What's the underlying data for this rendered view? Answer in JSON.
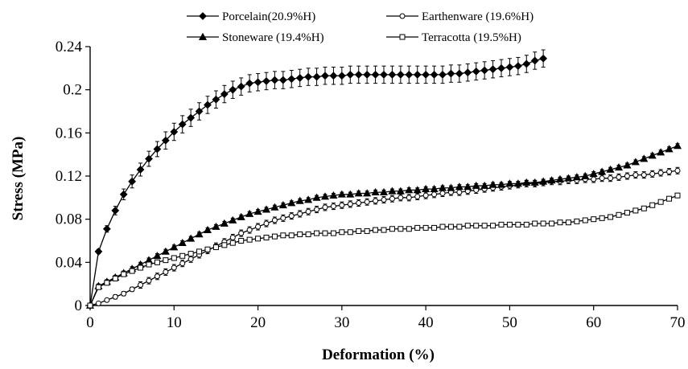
{
  "chart_data": {
    "type": "line",
    "xlabel": "Deformation (%)",
    "ylabel": "Stress (MPa)",
    "xlim": [
      0,
      70
    ],
    "ylim": [
      0,
      0.24
    ],
    "xticks": [
      "0",
      "10",
      "20",
      "30",
      "40",
      "50",
      "60",
      "70"
    ],
    "yticks": [
      "0",
      "0.04",
      "0.08",
      "0.12",
      "0.16",
      "0.2",
      "0.24"
    ],
    "grid": false,
    "legend_position": "top",
    "series": [
      {
        "name": "Porcelain(20.9%H)",
        "marker": "diamond-filled",
        "error_bars": true,
        "x": [
          0,
          1,
          2,
          3,
          4,
          5,
          6,
          7,
          8,
          9,
          10,
          11,
          12,
          13,
          14,
          15,
          16,
          17,
          18,
          19,
          20,
          21,
          22,
          23,
          24,
          25,
          26,
          27,
          28,
          29,
          30,
          31,
          32,
          33,
          34,
          35,
          36,
          37,
          38,
          39,
          40,
          41,
          42,
          43,
          44,
          45,
          46,
          47,
          48,
          49,
          50,
          51,
          52,
          53,
          54
        ],
        "y": [
          0,
          0.05,
          0.071,
          0.088,
          0.103,
          0.115,
          0.126,
          0.136,
          0.145,
          0.153,
          0.161,
          0.168,
          0.174,
          0.18,
          0.186,
          0.191,
          0.196,
          0.2,
          0.203,
          0.206,
          0.207,
          0.208,
          0.209,
          0.209,
          0.21,
          0.211,
          0.212,
          0.212,
          0.213,
          0.213,
          0.213,
          0.214,
          0.214,
          0.214,
          0.214,
          0.214,
          0.214,
          0.214,
          0.214,
          0.214,
          0.214,
          0.214,
          0.214,
          0.215,
          0.215,
          0.216,
          0.217,
          0.218,
          0.219,
          0.22,
          0.221,
          0.222,
          0.224,
          0.227,
          0.229
        ],
        "err": [
          0,
          0.002,
          0.003,
          0.004,
          0.005,
          0.006,
          0.006,
          0.007,
          0.007,
          0.008,
          0.008,
          0.008,
          0.008,
          0.008,
          0.008,
          0.008,
          0.008,
          0.008,
          0.008,
          0.008,
          0.008,
          0.008,
          0.008,
          0.008,
          0.008,
          0.008,
          0.008,
          0.008,
          0.008,
          0.008,
          0.008,
          0.008,
          0.008,
          0.008,
          0.008,
          0.008,
          0.008,
          0.008,
          0.008,
          0.008,
          0.008,
          0.008,
          0.008,
          0.008,
          0.008,
          0.008,
          0.008,
          0.008,
          0.008,
          0.008,
          0.008,
          0.008,
          0.008,
          0.008,
          0.008
        ]
      },
      {
        "name": "Earthenware (19.6%H)",
        "marker": "circle-open",
        "error_bars": true,
        "x": [
          0,
          1,
          2,
          3,
          4,
          5,
          6,
          7,
          8,
          9,
          10,
          11,
          12,
          13,
          14,
          15,
          16,
          17,
          18,
          19,
          20,
          21,
          22,
          23,
          24,
          25,
          26,
          27,
          28,
          29,
          30,
          31,
          32,
          33,
          34,
          35,
          36,
          37,
          38,
          39,
          40,
          41,
          42,
          43,
          44,
          45,
          46,
          47,
          48,
          49,
          50,
          51,
          52,
          53,
          54,
          55,
          56,
          57,
          58,
          59,
          60,
          61,
          62,
          63,
          64,
          65,
          66,
          67,
          68,
          69,
          70
        ],
        "y": [
          0,
          0.002,
          0.005,
          0.008,
          0.011,
          0.015,
          0.019,
          0.023,
          0.027,
          0.031,
          0.035,
          0.039,
          0.043,
          0.047,
          0.051,
          0.055,
          0.059,
          0.063,
          0.067,
          0.07,
          0.073,
          0.076,
          0.079,
          0.081,
          0.083,
          0.085,
          0.087,
          0.089,
          0.091,
          0.092,
          0.093,
          0.094,
          0.095,
          0.096,
          0.097,
          0.098,
          0.099,
          0.1,
          0.1,
          0.101,
          0.102,
          0.103,
          0.104,
          0.105,
          0.105,
          0.106,
          0.107,
          0.108,
          0.109,
          0.11,
          0.111,
          0.112,
          0.113,
          0.113,
          0.114,
          0.115,
          0.115,
          0.116,
          0.116,
          0.117,
          0.117,
          0.118,
          0.118,
          0.119,
          0.12,
          0.121,
          0.121,
          0.122,
          0.123,
          0.124,
          0.125
        ],
        "err": [
          0,
          0.001,
          0.001,
          0.002,
          0.002,
          0.002,
          0.003,
          0.003,
          0.003,
          0.003,
          0.003,
          0.003,
          0.003,
          0.003,
          0.003,
          0.003,
          0.003,
          0.003,
          0.003,
          0.003,
          0.003,
          0.003,
          0.003,
          0.003,
          0.003,
          0.003,
          0.003,
          0.003,
          0.003,
          0.003,
          0.003,
          0.003,
          0.003,
          0.003,
          0.003,
          0.003,
          0.003,
          0.003,
          0.003,
          0.003,
          0.003,
          0.003,
          0.003,
          0.003,
          0.003,
          0.003,
          0.003,
          0.003,
          0.003,
          0.003,
          0.003,
          0.003,
          0.003,
          0.003,
          0.003,
          0.003,
          0.003,
          0.003,
          0.003,
          0.003,
          0.003,
          0.003,
          0.003,
          0.003,
          0.003,
          0.003,
          0.003,
          0.003,
          0.003,
          0.003,
          0.003
        ]
      },
      {
        "name": "Stoneware (19.4%H)",
        "marker": "triangle-filled",
        "error_bars": true,
        "x": [
          0,
          1,
          2,
          3,
          4,
          5,
          6,
          7,
          8,
          9,
          10,
          11,
          12,
          13,
          14,
          15,
          16,
          17,
          18,
          19,
          20,
          21,
          22,
          23,
          24,
          25,
          26,
          27,
          28,
          29,
          30,
          31,
          32,
          33,
          34,
          35,
          36,
          37,
          38,
          39,
          40,
          41,
          42,
          43,
          44,
          45,
          46,
          47,
          48,
          49,
          50,
          51,
          52,
          53,
          54,
          55,
          56,
          57,
          58,
          59,
          60,
          61,
          62,
          63,
          64,
          65,
          66,
          67,
          68,
          69,
          70
        ],
        "y": [
          0,
          0.018,
          0.022,
          0.026,
          0.03,
          0.034,
          0.038,
          0.042,
          0.046,
          0.05,
          0.054,
          0.058,
          0.062,
          0.066,
          0.07,
          0.073,
          0.076,
          0.079,
          0.082,
          0.085,
          0.087,
          0.089,
          0.091,
          0.093,
          0.095,
          0.097,
          0.098,
          0.1,
          0.101,
          0.102,
          0.103,
          0.103,
          0.104,
          0.104,
          0.105,
          0.105,
          0.106,
          0.106,
          0.107,
          0.107,
          0.108,
          0.108,
          0.109,
          0.109,
          0.11,
          0.11,
          0.111,
          0.111,
          0.112,
          0.112,
          0.113,
          0.113,
          0.114,
          0.114,
          0.115,
          0.116,
          0.117,
          0.118,
          0.119,
          0.12,
          0.122,
          0.124,
          0.126,
          0.128,
          0.13,
          0.133,
          0.136,
          0.139,
          0.142,
          0.145,
          0.148
        ],
        "err": [
          0,
          0.002,
          0.002,
          0.002,
          0.002,
          0.002,
          0.002,
          0.002,
          0.002,
          0.002,
          0.002,
          0.002,
          0.002,
          0.002,
          0.002,
          0.002,
          0.002,
          0.002,
          0.002,
          0.002,
          0.002,
          0.002,
          0.002,
          0.002,
          0.002,
          0.002,
          0.002,
          0.002,
          0.002,
          0.002,
          0.002,
          0.002,
          0.002,
          0.002,
          0.002,
          0.002,
          0.002,
          0.002,
          0.002,
          0.002,
          0.002,
          0.002,
          0.002,
          0.002,
          0.002,
          0.002,
          0.002,
          0.002,
          0.002,
          0.002,
          0.002,
          0.002,
          0.002,
          0.002,
          0.002,
          0.002,
          0.002,
          0.002,
          0.002,
          0.002,
          0.002,
          0.002,
          0.002,
          0.002,
          0.002,
          0.002,
          0.002,
          0.002,
          0.002,
          0.002,
          0.002
        ]
      },
      {
        "name": "Terracotta (19.5%H)",
        "marker": "square-open",
        "error_bars": true,
        "x": [
          0,
          1,
          2,
          3,
          4,
          5,
          6,
          7,
          8,
          9,
          10,
          11,
          12,
          13,
          14,
          15,
          16,
          17,
          18,
          19,
          20,
          21,
          22,
          23,
          24,
          25,
          26,
          27,
          28,
          29,
          30,
          31,
          32,
          33,
          34,
          35,
          36,
          37,
          38,
          39,
          40,
          41,
          42,
          43,
          44,
          45,
          46,
          47,
          48,
          49,
          50,
          51,
          52,
          53,
          54,
          55,
          56,
          57,
          58,
          59,
          60,
          61,
          62,
          63,
          64,
          65,
          66,
          67,
          68,
          69,
          70
        ],
        "y": [
          0,
          0.017,
          0.021,
          0.025,
          0.029,
          0.032,
          0.035,
          0.038,
          0.04,
          0.042,
          0.044,
          0.046,
          0.048,
          0.05,
          0.052,
          0.054,
          0.056,
          0.058,
          0.06,
          0.061,
          0.062,
          0.063,
          0.064,
          0.065,
          0.065,
          0.066,
          0.066,
          0.067,
          0.067,
          0.067,
          0.068,
          0.068,
          0.069,
          0.069,
          0.07,
          0.07,
          0.071,
          0.071,
          0.071,
          0.072,
          0.072,
          0.072,
          0.073,
          0.073,
          0.073,
          0.074,
          0.074,
          0.074,
          0.074,
          0.075,
          0.075,
          0.075,
          0.075,
          0.076,
          0.076,
          0.076,
          0.077,
          0.077,
          0.078,
          0.079,
          0.08,
          0.081,
          0.082,
          0.084,
          0.086,
          0.088,
          0.09,
          0.093,
          0.096,
          0.099,
          0.102
        ],
        "err": [
          0,
          0.002,
          0.002,
          0.002,
          0.002,
          0.002,
          0.002,
          0.002,
          0.002,
          0.002,
          0.002,
          0.002,
          0.002,
          0.002,
          0.002,
          0.002,
          0.002,
          0.002,
          0.002,
          0.002,
          0.002,
          0.002,
          0.002,
          0.002,
          0.002,
          0.002,
          0.002,
          0.002,
          0.002,
          0.002,
          0.002,
          0.002,
          0.002,
          0.002,
          0.002,
          0.002,
          0.002,
          0.002,
          0.002,
          0.002,
          0.002,
          0.002,
          0.002,
          0.002,
          0.002,
          0.002,
          0.002,
          0.002,
          0.002,
          0.002,
          0.002,
          0.002,
          0.002,
          0.002,
          0.002,
          0.002,
          0.002,
          0.002,
          0.002,
          0.002,
          0.002,
          0.002,
          0.002,
          0.002,
          0.002,
          0.002,
          0.002,
          0.002,
          0.002,
          0.002,
          0.002
        ]
      }
    ]
  }
}
